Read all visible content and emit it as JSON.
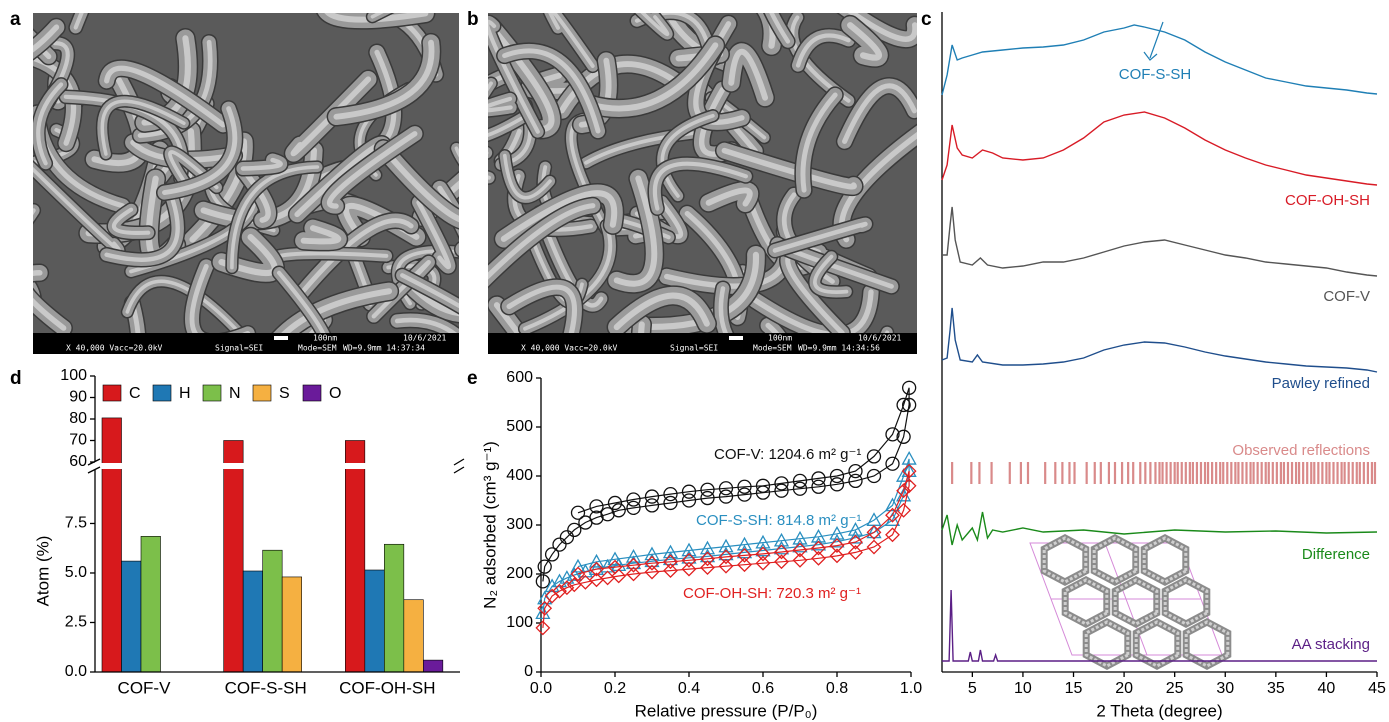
{
  "figure": {
    "images": [
      {
        "panel_label": "a",
        "scale_bar": "100nm",
        "date": "10/6/2021",
        "magnification": "X 40,000 Vacc=20.0kV",
        "signal": "Signal=SEI",
        "mode": "Mode=SEM",
        "wd": "WD=9.9mm 14:37:34"
      },
      {
        "panel_label": "b",
        "scale_bar": "100nm",
        "date": "10/6/2021",
        "magnification": "X 40,000 Vacc=20.0kV",
        "signal": "Signal=SEI",
        "mode": "Mode=SEM",
        "wd": "WD=9.9mm 14:34:56"
      }
    ]
  },
  "chart_data": [
    {
      "type": "line",
      "panel_label": "c",
      "xlabel": "2 Theta (degree)",
      "xlim": [
        2,
        45
      ],
      "xticks": [
        5,
        10,
        15,
        20,
        25,
        30,
        35,
        40,
        45
      ],
      "ylim": [
        0,
        660
      ],
      "series": [
        {
          "name": "COF-S-SH",
          "color": "#1f7fb5",
          "x": [
            2,
            2.5,
            3,
            3.5,
            4,
            5,
            6,
            8,
            10,
            12,
            14,
            16,
            18,
            20,
            21,
            22,
            24,
            26,
            28,
            30,
            32,
            34,
            36,
            38,
            40,
            42,
            44,
            45
          ],
          "values": [
            577,
            597,
            627,
            612,
            614,
            617,
            620,
            622,
            624,
            625,
            627,
            632,
            640,
            644,
            647,
            645,
            640,
            632,
            620,
            610,
            602,
            594,
            590,
            586,
            584,
            582,
            579,
            578
          ]
        },
        {
          "name": "COF-OH-SH",
          "color": "#d81b26",
          "x": [
            2,
            2.5,
            3,
            3.5,
            4,
            5,
            6,
            7,
            8,
            10,
            12,
            14,
            16,
            18,
            20,
            22,
            24,
            26,
            28,
            30,
            32,
            34,
            36,
            38,
            40,
            42,
            44,
            45
          ],
          "values": [
            492,
            507,
            547,
            524,
            517,
            514,
            522,
            519,
            514,
            512,
            514,
            522,
            534,
            550,
            557,
            560,
            554,
            544,
            532,
            522,
            514,
            507,
            502,
            497,
            494,
            491,
            488,
            487
          ]
        },
        {
          "name": "COF-V",
          "color": "#555555",
          "x": [
            2,
            2.5,
            2.8,
            3,
            3.3,
            3.8,
            5,
            5.8,
            6.5,
            8,
            10,
            12,
            14,
            16,
            18,
            20,
            22,
            24,
            26,
            28,
            30,
            32,
            34,
            36,
            38,
            40,
            42,
            44,
            45
          ],
          "values": [
            417,
            417,
            447,
            465,
            432,
            410,
            407,
            414,
            407,
            404,
            406,
            410,
            410,
            414,
            420,
            426,
            430,
            432,
            427,
            422,
            417,
            414,
            410,
            408,
            406,
            404,
            400,
            397,
            396
          ]
        },
        {
          "name": "Pawley refined",
          "color": "#1f4e8c",
          "x": [
            2,
            2.5,
            2.8,
            3,
            3.3,
            3.8,
            5,
            5.5,
            6,
            8,
            10,
            12,
            14,
            16,
            18,
            20,
            22,
            24,
            26,
            28,
            30,
            32,
            34,
            36,
            38,
            40,
            42,
            44,
            45
          ],
          "values": [
            312,
            314,
            342,
            364,
            332,
            312,
            310,
            317,
            310,
            307,
            307,
            308,
            310,
            314,
            322,
            327,
            330,
            329,
            325,
            320,
            316,
            313,
            310,
            308,
            306,
            305,
            304,
            302,
            300
          ]
        },
        {
          "name": "Difference",
          "color": "#1a8a1a",
          "x": [
            2,
            2.5,
            3,
            3.5,
            4,
            5,
            5.5,
            6,
            6.5,
            7,
            8,
            10,
            12,
            16,
            20,
            25,
            30,
            35,
            40,
            45
          ],
          "values": [
            142,
            157,
            127,
            147,
            132,
            144,
            132,
            160,
            134,
            142,
            140,
            144,
            140,
            142,
            138,
            142,
            140,
            141,
            139,
            140
          ]
        },
        {
          "name": "AA stacking",
          "color": "#5b1f86",
          "x": [
            2,
            2.7,
            2.9,
            3.1,
            4.6,
            4.8,
            5.0,
            5.6,
            5.8,
            6.0,
            7.1,
            7.3,
            7.5,
            45
          ],
          "values": [
            11,
            11,
            82,
            11,
            11,
            20,
            11,
            11,
            22,
            11,
            11,
            17,
            11,
            11
          ]
        }
      ],
      "reflections": {
        "name": "Observed reflections",
        "color": "#d98a8a",
        "positions": [
          3.0,
          4.9,
          5.7,
          6.9,
          8.7,
          9.8,
          10.5,
          12.2,
          13.2,
          13.9,
          14.6,
          15.1,
          16.3,
          17.1,
          17.7,
          18.5,
          19.1,
          19.8,
          20.4,
          20.9,
          21.6,
          22.1,
          22.6,
          23.1,
          23.5,
          23.8,
          24.2,
          24.6,
          25.0,
          25.3,
          25.7,
          26.1,
          26.5,
          26.8,
          27.2,
          27.6,
          28.0,
          28.3,
          28.7,
          29.1,
          29.5,
          29.8,
          30.2,
          30.6,
          31.0,
          31.3,
          31.7,
          32.1,
          32.5,
          32.8,
          33.2,
          33.6,
          34.0,
          34.3,
          34.7,
          35.1,
          35.5,
          35.8,
          36.2,
          36.6,
          37.0,
          37.3,
          37.7,
          38.1,
          38.5,
          38.8,
          39.2,
          39.6,
          40.0,
          40.3,
          40.7,
          41.1,
          41.5,
          41.8,
          42.2,
          42.6,
          43.0,
          43.3,
          43.7,
          44.1,
          44.5,
          44.8
        ]
      }
    },
    {
      "type": "bar",
      "panel_label": "d",
      "ylabel": "Atom (%)",
      "categories": [
        "COF-V",
        "COF-S-SH",
        "COF-OH-SH"
      ],
      "ylim": [
        0,
        100
      ],
      "ybreak": [
        10.2,
        60
      ],
      "yticks": [
        {
          "value": 0,
          "label": "0.0"
        },
        {
          "value": 2.5,
          "label": "2.5"
        },
        {
          "value": 5,
          "label": "5.0"
        },
        {
          "value": 7.5,
          "label": "7.5"
        },
        60,
        70,
        80,
        90,
        100
      ],
      "series": [
        {
          "name": "C",
          "color": "#d7191c",
          "values": [
            80.5,
            70,
            70
          ]
        },
        {
          "name": "H",
          "color": "#1f78b4",
          "values": [
            5.6,
            5.1,
            5.15
          ]
        },
        {
          "name": "N",
          "color": "#7cbf4a",
          "values": [
            6.85,
            6.15,
            6.45
          ]
        },
        {
          "name": "S",
          "color": "#f5b041",
          "values": [
            null,
            4.8,
            3.65
          ]
        },
        {
          "name": "O",
          "color": "#6a1b9a",
          "values": [
            null,
            null,
            0.6
          ]
        }
      ]
    },
    {
      "type": "line",
      "panel_label": "e",
      "xlabel": "Relative pressure (P/P₀)",
      "ylabel": "N₂ adsorbed (cm³ g⁻¹)",
      "xlim": [
        0,
        1
      ],
      "xticks": [
        {
          "value": 0,
          "label": "0.0"
        },
        {
          "value": 0.2,
          "label": "0.2"
        },
        {
          "value": 0.4,
          "label": "0.4"
        },
        {
          "value": 0.6,
          "label": "0.6"
        },
        {
          "value": 0.8,
          "label": "0.8"
        },
        {
          "value": 1,
          "label": "1.0"
        }
      ],
      "ylim": [
        0,
        600
      ],
      "yticks": [
        0,
        100,
        200,
        300,
        400,
        500,
        600
      ],
      "x": [
        0.005,
        0.01,
        0.03,
        0.05,
        0.07,
        0.09,
        0.12,
        0.15,
        0.18,
        0.21,
        0.25,
        0.3,
        0.35,
        0.4,
        0.45,
        0.5,
        0.55,
        0.6,
        0.65,
        0.7,
        0.75,
        0.8,
        0.85,
        0.9,
        0.95,
        0.98,
        0.995,
        0.995,
        0.98,
        0.95,
        0.9,
        0.85,
        0.8,
        0.75,
        0.7,
        0.65,
        0.6,
        0.55,
        0.5,
        0.45,
        0.4,
        0.35,
        0.3,
        0.25,
        0.2,
        0.15,
        0.1
      ],
      "series": [
        {
          "name": "COF-V: 1204.6 m² g⁻¹",
          "color": "#111111",
          "marker": "circle",
          "values": [
            185,
            215,
            240,
            260,
            275,
            290,
            305,
            315,
            322,
            330,
            335,
            340,
            345,
            350,
            355,
            358,
            362,
            366,
            370,
            374,
            378,
            383,
            390,
            400,
            425,
            480,
            545,
            580,
            545,
            485,
            440,
            410,
            400,
            395,
            390,
            385,
            380,
            378,
            375,
            372,
            368,
            363,
            358,
            352,
            345,
            338,
            325
          ]
        },
        {
          "name": "COF-S-SH: 814.8 m² g⁻¹",
          "color": "#2a8fc0",
          "marker": "triangle",
          "values": [
            120,
            150,
            175,
            185,
            192,
            198,
            205,
            210,
            215,
            218,
            222,
            226,
            230,
            233,
            236,
            240,
            244,
            248,
            252,
            256,
            260,
            266,
            274,
            285,
            310,
            360,
            410,
            435,
            400,
            340,
            310,
            290,
            282,
            276,
            272,
            268,
            264,
            260,
            256,
            252,
            248,
            244,
            240,
            235,
            230,
            225,
            215
          ]
        },
        {
          "name": "COF-OH-SH: 720.3 m² g⁻¹",
          "color": "#e02020",
          "marker": "diamond",
          "values": [
            90,
            130,
            155,
            165,
            172,
            178,
            183,
            188,
            192,
            196,
            200,
            204,
            207,
            210,
            213,
            216,
            219,
            222,
            225,
            228,
            232,
            237,
            244,
            255,
            280,
            330,
            380,
            410,
            370,
            320,
            285,
            265,
            258,
            253,
            249,
            245,
            241,
            238,
            235,
            231,
            228,
            225,
            222,
            218,
            214,
            210,
            200
          ]
        }
      ]
    }
  ]
}
